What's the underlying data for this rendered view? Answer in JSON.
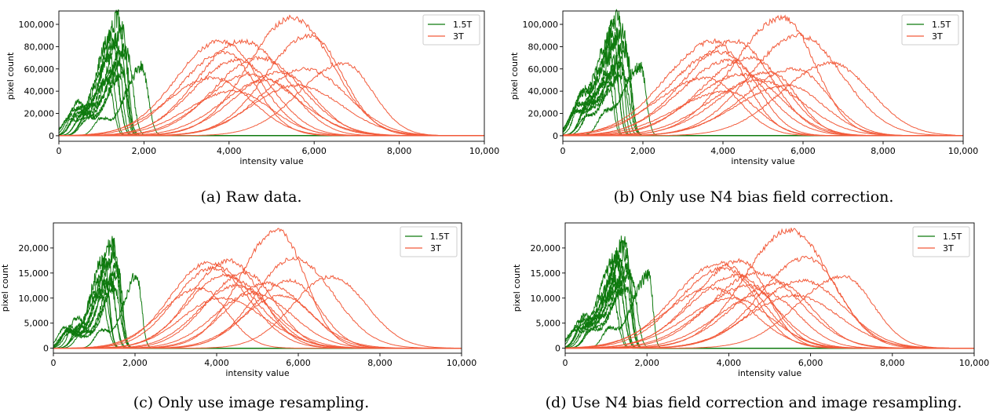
{
  "colors": {
    "green": "#0f7a0f",
    "red": "#f25a3a"
  },
  "panels": [
    {
      "caption": "(a)  Raw data."
    },
    {
      "caption": "(b)  Only use N4 bias field correction."
    },
    {
      "caption": "(c)  Only use image resampling."
    },
    {
      "caption": "(d)  Use N4 bias field correction and image resampling."
    }
  ],
  "chart_data": [
    {
      "type": "line",
      "xlabel": "intensity value",
      "ylabel": "pixel count",
      "xlim": [
        0,
        10000
      ],
      "ylim": [
        -5000,
        112000
      ],
      "x_ticks": [
        "0",
        "2,000",
        "4,000",
        "6,000",
        "8,000",
        "10,000"
      ],
      "y_ticks": [
        "0",
        "20,000",
        "40,000",
        "60,000",
        "80,000",
        "100,000"
      ],
      "legend_position": "top-right",
      "series": [
        {
          "name": "1.5T",
          "color": "#0f7a0f",
          "peaks_x": [
            1400,
            1500,
            1250,
            1350,
            1550,
            1600,
            1200,
            1450,
            1300,
            1500,
            1950,
            1150
          ],
          "peaks_y": [
            105000,
            95000,
            90000,
            85000,
            80000,
            75000,
            70000,
            65000,
            60000,
            55000,
            62000,
            50000
          ]
        },
        {
          "name": "3T",
          "color": "#f25a3a",
          "peaks_x": [
            5500,
            5900,
            4300,
            3800,
            3900,
            4700,
            4200,
            6700,
            5800,
            5200,
            4500,
            3600,
            4900,
            5600,
            4100
          ],
          "peaks_y": [
            106000,
            90000,
            85000,
            85000,
            75000,
            70000,
            68000,
            65000,
            60000,
            57000,
            55000,
            52000,
            50000,
            45000,
            40000
          ]
        }
      ]
    },
    {
      "type": "line",
      "xlabel": "intensity value",
      "ylabel": "pixel count",
      "xlim": [
        0,
        10000
      ],
      "ylim": [
        -5000,
        112000
      ],
      "x_ticks": [
        "0",
        "2,000",
        "4,000",
        "6,000",
        "8,000",
        "10,000"
      ],
      "y_ticks": [
        "0",
        "20,000",
        "40,000",
        "60,000",
        "80,000",
        "100,000"
      ],
      "legend_position": "top-right",
      "series": [
        {
          "name": "1.5T",
          "color": "#0f7a0f",
          "peaks_x": [
            1400,
            1500,
            1250,
            1350,
            1550,
            1600,
            1200,
            1450,
            1300,
            1500,
            1950,
            1150
          ],
          "peaks_y": [
            105000,
            95000,
            90000,
            85000,
            80000,
            75000,
            70000,
            65000,
            60000,
            55000,
            62000,
            50000
          ]
        },
        {
          "name": "3T",
          "color": "#f25a3a",
          "peaks_x": [
            5500,
            5900,
            4300,
            3800,
            3900,
            4700,
            4200,
            6700,
            5800,
            5200,
            4500,
            3600,
            4900,
            5600,
            4100
          ],
          "peaks_y": [
            106000,
            90000,
            85000,
            85000,
            75000,
            70000,
            68000,
            65000,
            60000,
            57000,
            55000,
            52000,
            50000,
            45000,
            40000
          ]
        }
      ]
    },
    {
      "type": "line",
      "xlabel": "intensity value",
      "ylabel": "pixel count",
      "xlim": [
        0,
        10000
      ],
      "ylim": [
        -1000,
        25000
      ],
      "x_ticks": [
        "0",
        "2,000",
        "4,000",
        "6,000",
        "8,000",
        "10,000"
      ],
      "y_ticks": [
        "0",
        "5,000",
        "10,000",
        "15,000",
        "20,000"
      ],
      "legend_position": "top-right",
      "series": [
        {
          "name": "1.5T",
          "color": "#0f7a0f",
          "peaks_x": [
            1450,
            1500,
            1250,
            1350,
            1550,
            1600,
            1200,
            1400,
            1300,
            1500,
            2050,
            1150
          ],
          "peaks_y": [
            21000,
            19000,
            18000,
            17000,
            16000,
            15000,
            14000,
            13500,
            13000,
            12000,
            14500,
            11000
          ]
        },
        {
          "name": "3T",
          "color": "#f25a3a",
          "peaks_x": [
            5500,
            5900,
            4300,
            3800,
            3900,
            4700,
            4200,
            6800,
            5800,
            5200,
            4500,
            3600,
            4900,
            5600,
            4100
          ],
          "peaks_y": [
            23500,
            18000,
            17500,
            17000,
            16000,
            15000,
            14500,
            14300,
            13500,
            13000,
            12500,
            12000,
            11000,
            10500,
            10000
          ]
        }
      ]
    },
    {
      "type": "line",
      "xlabel": "intensity value",
      "ylabel": "pixel count",
      "xlim": [
        0,
        10000
      ],
      "ylim": [
        -1000,
        25000
      ],
      "x_ticks": [
        "0",
        "2,000",
        "4,000",
        "6,000",
        "8,000",
        "10,000"
      ],
      "y_ticks": [
        "0",
        "5,000",
        "10,000",
        "15,000",
        "20,000"
      ],
      "legend_position": "top-right",
      "series": [
        {
          "name": "1.5T",
          "color": "#0f7a0f",
          "peaks_x": [
            1450,
            1500,
            1250,
            1350,
            1550,
            1600,
            1200,
            1400,
            1300,
            1500,
            2050,
            1150
          ],
          "peaks_y": [
            21000,
            19000,
            18000,
            17000,
            16000,
            15000,
            14000,
            13500,
            13000,
            12000,
            14500,
            11000
          ]
        },
        {
          "name": "3T",
          "color": "#f25a3a",
          "peaks_x": [
            5500,
            5900,
            4300,
            3800,
            3900,
            4700,
            4200,
            6800,
            5800,
            5200,
            4500,
            3600,
            4900,
            5600,
            4100
          ],
          "peaks_y": [
            23500,
            18000,
            17500,
            17000,
            16000,
            15000,
            14500,
            14300,
            13500,
            13000,
            12500,
            12000,
            11000,
            10500,
            10000
          ]
        }
      ]
    }
  ]
}
